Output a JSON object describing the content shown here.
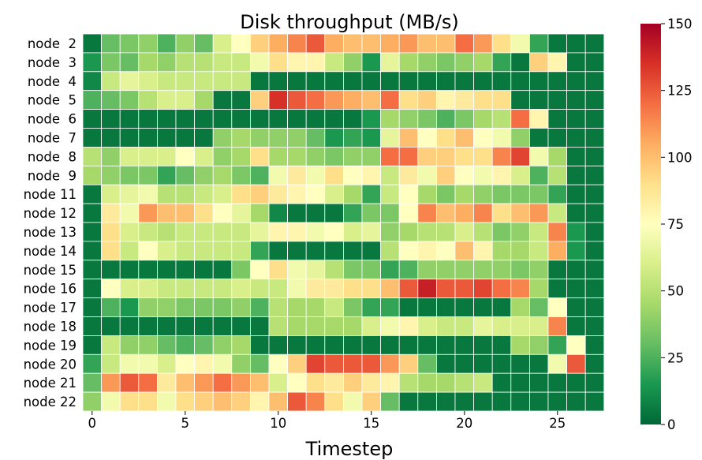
{
  "chart_data": {
    "type": "heatmap",
    "title": "Disk throughput (MB/s)",
    "xlabel": "Timestep",
    "ylabel": "",
    "x_ticks": [
      0,
      5,
      10,
      15,
      20,
      25
    ],
    "x_columns": 28,
    "rows": [
      "node  2",
      "node  3",
      "node  4",
      "node  5",
      "node  6",
      "node  7",
      "node  8",
      "node  9",
      "node 11",
      "node 12",
      "node 13",
      "node 14",
      "node 15",
      "node 16",
      "node 17",
      "node 18",
      "node 19",
      "node 20",
      "node 21",
      "node 22"
    ],
    "colorbar": {
      "min": 0,
      "max": 150,
      "ticks": [
        0,
        25,
        50,
        75,
        100,
        125,
        150
      ],
      "colormap": "RdYlGn_r"
    },
    "values": [
      [
        5,
        30,
        35,
        40,
        25,
        40,
        30,
        60,
        75,
        95,
        105,
        115,
        125,
        105,
        100,
        100,
        105,
        110,
        100,
        100,
        120,
        110,
        90,
        70,
        20,
        5,
        5,
        5
      ],
      [
        15,
        35,
        30,
        45,
        40,
        50,
        50,
        55,
        55,
        70,
        90,
        80,
        80,
        55,
        40,
        15,
        65,
        45,
        40,
        35,
        40,
        45,
        20,
        5,
        95,
        80,
        5,
        5
      ],
      [
        10,
        55,
        65,
        60,
        55,
        55,
        55,
        55,
        55,
        5,
        5,
        5,
        5,
        5,
        5,
        5,
        5,
        5,
        5,
        5,
        5,
        5,
        5,
        5,
        5,
        5,
        5,
        5
      ],
      [
        25,
        30,
        35,
        50,
        60,
        60,
        45,
        5,
        5,
        95,
        135,
        125,
        120,
        110,
        105,
        100,
        120,
        90,
        95,
        80,
        85,
        90,
        90,
        5,
        5,
        5,
        5,
        5
      ],
      [
        5,
        5,
        5,
        5,
        5,
        5,
        5,
        5,
        5,
        5,
        5,
        5,
        5,
        5,
        5,
        15,
        45,
        40,
        35,
        25,
        35,
        45,
        50,
        120,
        80,
        5,
        5,
        5
      ],
      [
        5,
        5,
        5,
        5,
        5,
        5,
        5,
        40,
        45,
        40,
        40,
        40,
        30,
        15,
        20,
        15,
        65,
        100,
        75,
        90,
        100,
        75,
        70,
        40,
        5,
        5,
        5,
        5
      ],
      [
        50,
        40,
        60,
        60,
        60,
        75,
        60,
        40,
        45,
        90,
        45,
        45,
        40,
        35,
        40,
        40,
        120,
        120,
        95,
        95,
        90,
        90,
        115,
        130,
        70,
        45,
        5,
        5
      ],
      [
        45,
        40,
        35,
        35,
        20,
        30,
        40,
        45,
        35,
        25,
        70,
        85,
        70,
        90,
        75,
        80,
        55,
        85,
        70,
        95,
        75,
        70,
        80,
        60,
        25,
        50,
        5,
        5
      ],
      [
        5,
        60,
        65,
        70,
        50,
        50,
        55,
        60,
        90,
        95,
        85,
        80,
        75,
        60,
        45,
        20,
        55,
        75,
        45,
        35,
        45,
        40,
        35,
        35,
        35,
        20,
        5,
        5
      ],
      [
        5,
        85,
        70,
        110,
        100,
        100,
        90,
        75,
        65,
        45,
        10,
        5,
        5,
        5,
        20,
        35,
        35,
        75,
        115,
        100,
        105,
        115,
        90,
        100,
        110,
        55,
        5,
        5
      ],
      [
        5,
        90,
        60,
        55,
        50,
        55,
        55,
        55,
        55,
        65,
        80,
        80,
        70,
        75,
        60,
        65,
        40,
        45,
        50,
        50,
        60,
        50,
        35,
        40,
        55,
        115,
        15,
        5
      ],
      [
        5,
        90,
        55,
        75,
        60,
        55,
        55,
        55,
        55,
        20,
        5,
        5,
        5,
        5,
        5,
        5,
        50,
        75,
        80,
        75,
        100,
        80,
        45,
        45,
        55,
        105,
        15,
        5
      ],
      [
        5,
        5,
        5,
        5,
        5,
        5,
        5,
        5,
        35,
        75,
        90,
        70,
        65,
        50,
        35,
        35,
        20,
        25,
        40,
        40,
        40,
        40,
        40,
        35,
        40,
        5,
        5,
        5
      ],
      [
        5,
        75,
        60,
        60,
        55,
        55,
        55,
        55,
        60,
        55,
        55,
        70,
        85,
        85,
        90,
        90,
        100,
        125,
        140,
        125,
        125,
        130,
        120,
        115,
        45,
        5,
        5,
        5
      ],
      [
        5,
        25,
        15,
        40,
        40,
        35,
        35,
        35,
        40,
        25,
        50,
        45,
        45,
        55,
        35,
        20,
        20,
        5,
        5,
        5,
        5,
        5,
        5,
        45,
        30,
        75,
        5,
        5
      ],
      [
        5,
        5,
        5,
        5,
        5,
        5,
        5,
        5,
        5,
        5,
        50,
        45,
        45,
        45,
        45,
        60,
        70,
        80,
        60,
        55,
        55,
        65,
        60,
        60,
        60,
        115,
        5,
        5
      ],
      [
        5,
        55,
        40,
        40,
        30,
        25,
        30,
        40,
        45,
        5,
        5,
        5,
        5,
        5,
        5,
        5,
        5,
        5,
        5,
        5,
        5,
        5,
        5,
        45,
        40,
        20,
        75,
        5
      ],
      [
        20,
        55,
        70,
        70,
        60,
        75,
        80,
        70,
        40,
        30,
        75,
        95,
        130,
        125,
        125,
        125,
        110,
        95,
        30,
        5,
        5,
        5,
        5,
        5,
        5,
        70,
        125,
        5
      ],
      [
        30,
        110,
        125,
        120,
        85,
        100,
        110,
        120,
        110,
        100,
        60,
        75,
        90,
        85,
        95,
        85,
        80,
        50,
        45,
        45,
        50,
        55,
        5,
        5,
        5,
        5,
        5,
        5
      ],
      [
        40,
        70,
        90,
        90,
        70,
        90,
        95,
        100,
        95,
        80,
        100,
        125,
        115,
        90,
        70,
        95,
        30,
        5,
        5,
        5,
        5,
        5,
        5,
        5,
        5,
        5,
        5,
        5
      ]
    ]
  }
}
